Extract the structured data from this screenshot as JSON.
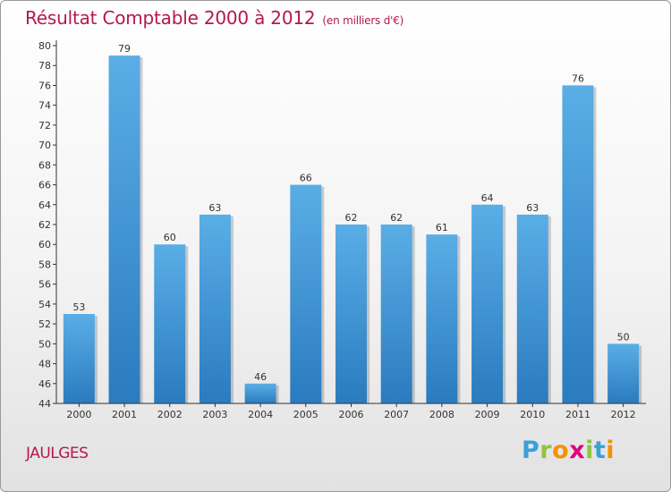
{
  "chart_data": {
    "type": "bar",
    "title": "Résultat Comptable 2000 à 2012",
    "subtitle": "(en milliers d'€)",
    "categories": [
      "2000",
      "2001",
      "2002",
      "2003",
      "2004",
      "2005",
      "2006",
      "2007",
      "2008",
      "2009",
      "2010",
      "2011",
      "2012"
    ],
    "values": [
      53,
      79,
      60,
      63,
      46,
      66,
      62,
      62,
      61,
      64,
      63,
      76,
      50
    ],
    "ylim": [
      44,
      80
    ],
    "yticks": [
      44,
      46,
      48,
      50,
      52,
      54,
      56,
      58,
      60,
      62,
      64,
      66,
      68,
      70,
      72,
      74,
      76,
      78,
      80
    ],
    "xlabel": "",
    "ylabel": "",
    "grid": false
  },
  "commune": "JAULGES",
  "logo": {
    "text": "Proxiti",
    "letters": [
      {
        "char": "P",
        "color": "#3aa0d8"
      },
      {
        "char": "r",
        "color": "#8cc63f"
      },
      {
        "char": "o",
        "color": "#f39200"
      },
      {
        "char": "x",
        "color": "#e2007a"
      },
      {
        "char": "i",
        "color": "#8cc63f"
      },
      {
        "char": "t",
        "color": "#3aa0d8"
      },
      {
        "char": "i",
        "color": "#f39200"
      }
    ]
  },
  "colors": {
    "title": "#b5174d",
    "bar_light": "#5aaee6",
    "bar_dark": "#2a7bbf",
    "axis": "#333333"
  }
}
